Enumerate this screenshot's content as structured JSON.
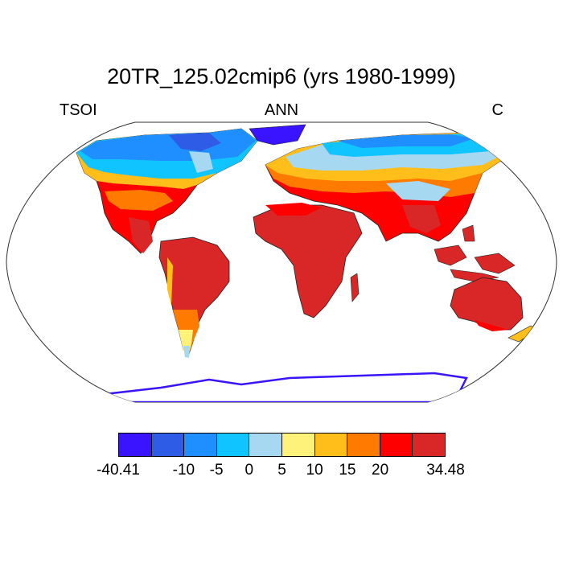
{
  "title": "20TR_125.02cmip6 (yrs 1980-1999)",
  "variable": "TSOI",
  "season": "ANN",
  "units": "C",
  "map": {
    "projection": "Robinson",
    "description_colors": {
      "polar": "#3a14ff",
      "cold": "#2e5ce6",
      "cool": "#1f8fff",
      "mild": "#10c4ff",
      "temperate": "#a6d8f2",
      "warm": "#fff27a",
      "hot1": "#ffbe1a",
      "hot2": "#ff7a00",
      "tropic1": "#ff0000",
      "tropic2": "#d92626"
    }
  },
  "colorbar": {
    "colors": [
      "#3a14ff",
      "#2e5ce6",
      "#1f8fff",
      "#10c4ff",
      "#a6d8f2",
      "#fff27a",
      "#ffbe1a",
      "#ff7a00",
      "#ff0000",
      "#d92626"
    ],
    "labels": [
      "-40.41",
      "-10",
      "-5",
      "0",
      "5",
      "10",
      "15",
      "20",
      "34.48"
    ]
  }
}
